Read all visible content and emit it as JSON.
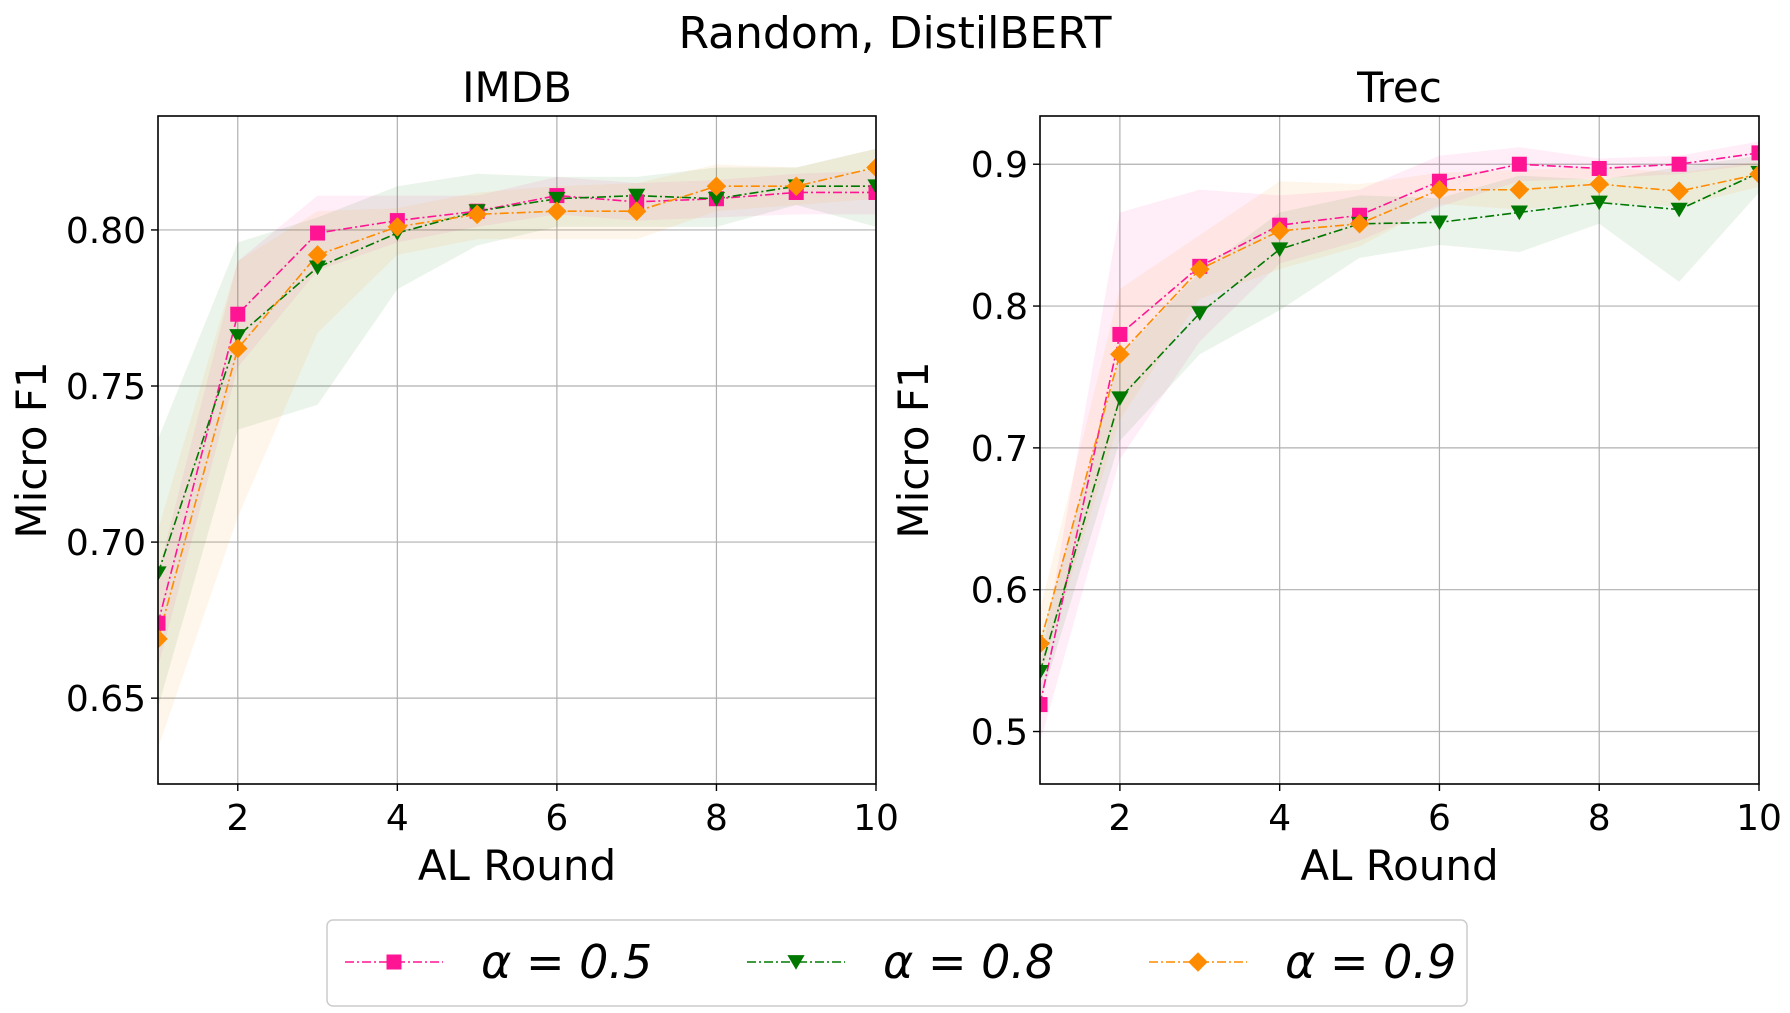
{
  "figure": {
    "suptitle": "Random, DistilBERT"
  },
  "colors": {
    "alpha05": "#ff1493",
    "alpha08": "#007800",
    "alpha09": "#ff8c00",
    "grid": "#b0b0b0",
    "axis": "#000000"
  },
  "chart_data": [
    {
      "type": "line",
      "title": "IMDB",
      "xlabel": "AL Round",
      "ylabel": "Micro F1",
      "xlim": [
        1,
        10
      ],
      "ylim": [
        0.6225,
        0.8365
      ],
      "xticks": [
        2,
        4,
        6,
        8,
        10
      ],
      "yticks": [
        0.65,
        0.7,
        0.75,
        0.8
      ],
      "ytick_labels": [
        "0.65",
        "0.70",
        "0.75",
        "0.80"
      ],
      "grid": true,
      "x": [
        1,
        2,
        3,
        4,
        5,
        6,
        7,
        8,
        9,
        10
      ],
      "series": [
        {
          "name": "α = 0.5",
          "marker": "square",
          "color_key": "alpha05",
          "values": [
            0.674,
            0.773,
            0.799,
            0.803,
            0.806,
            0.811,
            0.809,
            0.81,
            0.812,
            0.812
          ],
          "lower": [
            0.66,
            0.756,
            0.787,
            0.796,
            0.801,
            0.805,
            0.803,
            0.804,
            0.805,
            0.805
          ],
          "upper": [
            0.69,
            0.79,
            0.811,
            0.811,
            0.811,
            0.817,
            0.815,
            0.816,
            0.818,
            0.819
          ]
        },
        {
          "name": "α = 0.8",
          "marker": "triangle-down",
          "color_key": "alpha08",
          "values": [
            0.69,
            0.766,
            0.788,
            0.799,
            0.806,
            0.81,
            0.811,
            0.81,
            0.814,
            0.814
          ],
          "lower": [
            0.647,
            0.736,
            0.744,
            0.781,
            0.795,
            0.801,
            0.801,
            0.801,
            0.808,
            0.801
          ],
          "upper": [
            0.733,
            0.796,
            0.804,
            0.814,
            0.818,
            0.817,
            0.817,
            0.82,
            0.82,
            0.826
          ]
        },
        {
          "name": "α = 0.9",
          "marker": "diamond",
          "color_key": "alpha09",
          "values": [
            0.669,
            0.762,
            0.792,
            0.801,
            0.805,
            0.806,
            0.806,
            0.814,
            0.814,
            0.82
          ],
          "lower": [
            0.634,
            0.708,
            0.767,
            0.792,
            0.797,
            0.797,
            0.797,
            0.806,
            0.808,
            0.81
          ],
          "upper": [
            0.704,
            0.79,
            0.806,
            0.807,
            0.812,
            0.814,
            0.815,
            0.821,
            0.82,
            0.826
          ]
        }
      ]
    },
    {
      "type": "line",
      "title": "Trec",
      "xlabel": "AL Round",
      "ylabel": "Micro F1",
      "xlim": [
        1,
        10
      ],
      "ylim": [
        0.463,
        0.934
      ],
      "xticks": [
        2,
        4,
        6,
        8,
        10
      ],
      "yticks": [
        0.5,
        0.6,
        0.7,
        0.8,
        0.9
      ],
      "ytick_labels": [
        "0.5",
        "0.6",
        "0.7",
        "0.8",
        "0.9"
      ],
      "grid": true,
      "x": [
        1,
        2,
        3,
        4,
        5,
        6,
        7,
        8,
        9,
        10
      ],
      "series": [
        {
          "name": "α = 0.5",
          "marker": "square",
          "color_key": "alpha05",
          "values": [
            0.519,
            0.78,
            0.828,
            0.857,
            0.864,
            0.888,
            0.9,
            0.897,
            0.9,
            0.908
          ],
          "lower": [
            0.492,
            0.692,
            0.775,
            0.83,
            0.846,
            0.87,
            0.888,
            0.89,
            0.893,
            0.9
          ],
          "upper": [
            0.546,
            0.866,
            0.882,
            0.878,
            0.882,
            0.906,
            0.912,
            0.904,
            0.906,
            0.916
          ]
        },
        {
          "name": "α = 0.8",
          "marker": "triangle-down",
          "color_key": "alpha08",
          "values": [
            0.542,
            0.735,
            0.795,
            0.84,
            0.858,
            0.859,
            0.866,
            0.873,
            0.868,
            0.894
          ],
          "lower": [
            0.52,
            0.705,
            0.766,
            0.797,
            0.834,
            0.843,
            0.838,
            0.858,
            0.817,
            0.88
          ],
          "upper": [
            0.564,
            0.765,
            0.824,
            0.866,
            0.878,
            0.876,
            0.892,
            0.889,
            0.898,
            0.906
          ]
        },
        {
          "name": "α = 0.9",
          "marker": "diamond",
          "color_key": "alpha09",
          "values": [
            0.562,
            0.766,
            0.826,
            0.853,
            0.858,
            0.882,
            0.882,
            0.886,
            0.881,
            0.893
          ],
          "lower": [
            0.538,
            0.72,
            0.805,
            0.826,
            0.842,
            0.872,
            0.868,
            0.873,
            0.87,
            0.884
          ],
          "upper": [
            0.586,
            0.812,
            0.85,
            0.888,
            0.886,
            0.894,
            0.896,
            0.898,
            0.894,
            0.902
          ]
        }
      ]
    }
  ],
  "legend": {
    "items": [
      {
        "label": "α = 0.5",
        "marker": "square",
        "color_key": "alpha05"
      },
      {
        "label": "α = 0.8",
        "marker": "triangle-down",
        "color_key": "alpha08"
      },
      {
        "label": "α = 0.9",
        "marker": "diamond",
        "color_key": "alpha09"
      }
    ],
    "placement": "bottom-center"
  }
}
